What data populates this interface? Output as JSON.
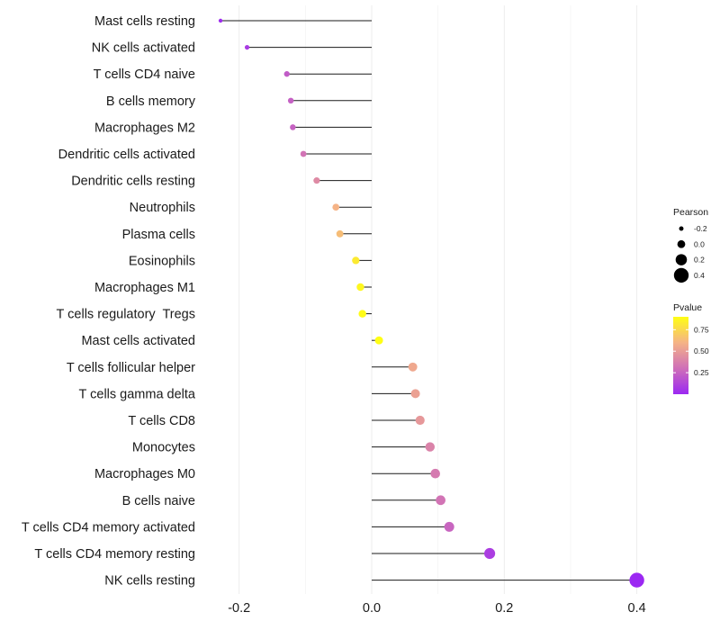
{
  "chart_data": {
    "type": "lollipop",
    "title": "",
    "xlabel": "",
    "ylabel": "",
    "xlim": [
      -0.27,
      0.42
    ],
    "x_ticks": [
      -0.2,
      0.0,
      0.2,
      0.4
    ],
    "x_tick_labels": [
      "-0.2",
      "0.0",
      "0.2",
      "0.4"
    ],
    "grid": true,
    "points": [
      {
        "category": "Mast cells resting",
        "pearson": -0.228,
        "pvalue": 0.02
      },
      {
        "category": "NK cells activated",
        "pearson": -0.188,
        "pvalue": 0.08
      },
      {
        "category": "T cells CD4 naive",
        "pearson": -0.128,
        "pvalue": 0.22
      },
      {
        "category": "B cells memory",
        "pearson": -0.122,
        "pvalue": 0.24
      },
      {
        "category": "Macrophages M2",
        "pearson": -0.119,
        "pvalue": 0.25
      },
      {
        "category": "Dendritic cells activated",
        "pearson": -0.103,
        "pvalue": 0.32
      },
      {
        "category": "Dendritic cells resting",
        "pearson": -0.083,
        "pvalue": 0.42
      },
      {
        "category": "Neutrophils",
        "pearson": -0.054,
        "pvalue": 0.6
      },
      {
        "category": "Plasma cells",
        "pearson": -0.048,
        "pvalue": 0.64
      },
      {
        "category": "Eosinophils",
        "pearson": -0.024,
        "pvalue": 0.82
      },
      {
        "category": "Macrophages M1",
        "pearson": -0.017,
        "pvalue": 0.87
      },
      {
        "category": "T cells regulatory  Tregs",
        "pearson": -0.014,
        "pvalue": 0.89
      },
      {
        "category": "Mast cells activated",
        "pearson": 0.011,
        "pvalue": 0.92
      },
      {
        "category": "T cells follicular helper",
        "pearson": 0.062,
        "pvalue": 0.55
      },
      {
        "category": "T cells gamma delta",
        "pearson": 0.066,
        "pvalue": 0.52
      },
      {
        "category": "T cells CD8",
        "pearson": 0.073,
        "pvalue": 0.48
      },
      {
        "category": "Monocytes",
        "pearson": 0.088,
        "pvalue": 0.39
      },
      {
        "category": "Macrophages M0",
        "pearson": 0.096,
        "pvalue": 0.35
      },
      {
        "category": "B cells naive",
        "pearson": 0.104,
        "pvalue": 0.32
      },
      {
        "category": "T cells CD4 memory activated",
        "pearson": 0.117,
        "pvalue": 0.26
      },
      {
        "category": "T cells CD4 memory resting",
        "pearson": 0.178,
        "pvalue": 0.09
      },
      {
        "category": "NK cells resting",
        "pearson": 0.4,
        "pvalue": 0.0003
      }
    ],
    "legend_size": {
      "title": "Pearson",
      "entries": [
        {
          "label": "-0.2",
          "value": -0.2
        },
        {
          "label": "0.0",
          "value": 0.0
        },
        {
          "label": "0.2",
          "value": 0.2
        },
        {
          "label": "0.4",
          "value": 0.4
        }
      ]
    },
    "legend_color": {
      "title": "Pvalue",
      "range": [
        0.0,
        0.9
      ],
      "ticks": [
        {
          "label": "0.75",
          "value": 0.75
        },
        {
          "label": "0.50",
          "value": 0.5
        },
        {
          "label": "0.25",
          "value": 0.25
        }
      ],
      "colors": [
        "#9b28f2",
        "#cf6fb8",
        "#f5b386",
        "#fffe14"
      ]
    },
    "legend_placement": "right",
    "line_color": "#1a1a1a",
    "grid_color": "#ebebeb"
  }
}
